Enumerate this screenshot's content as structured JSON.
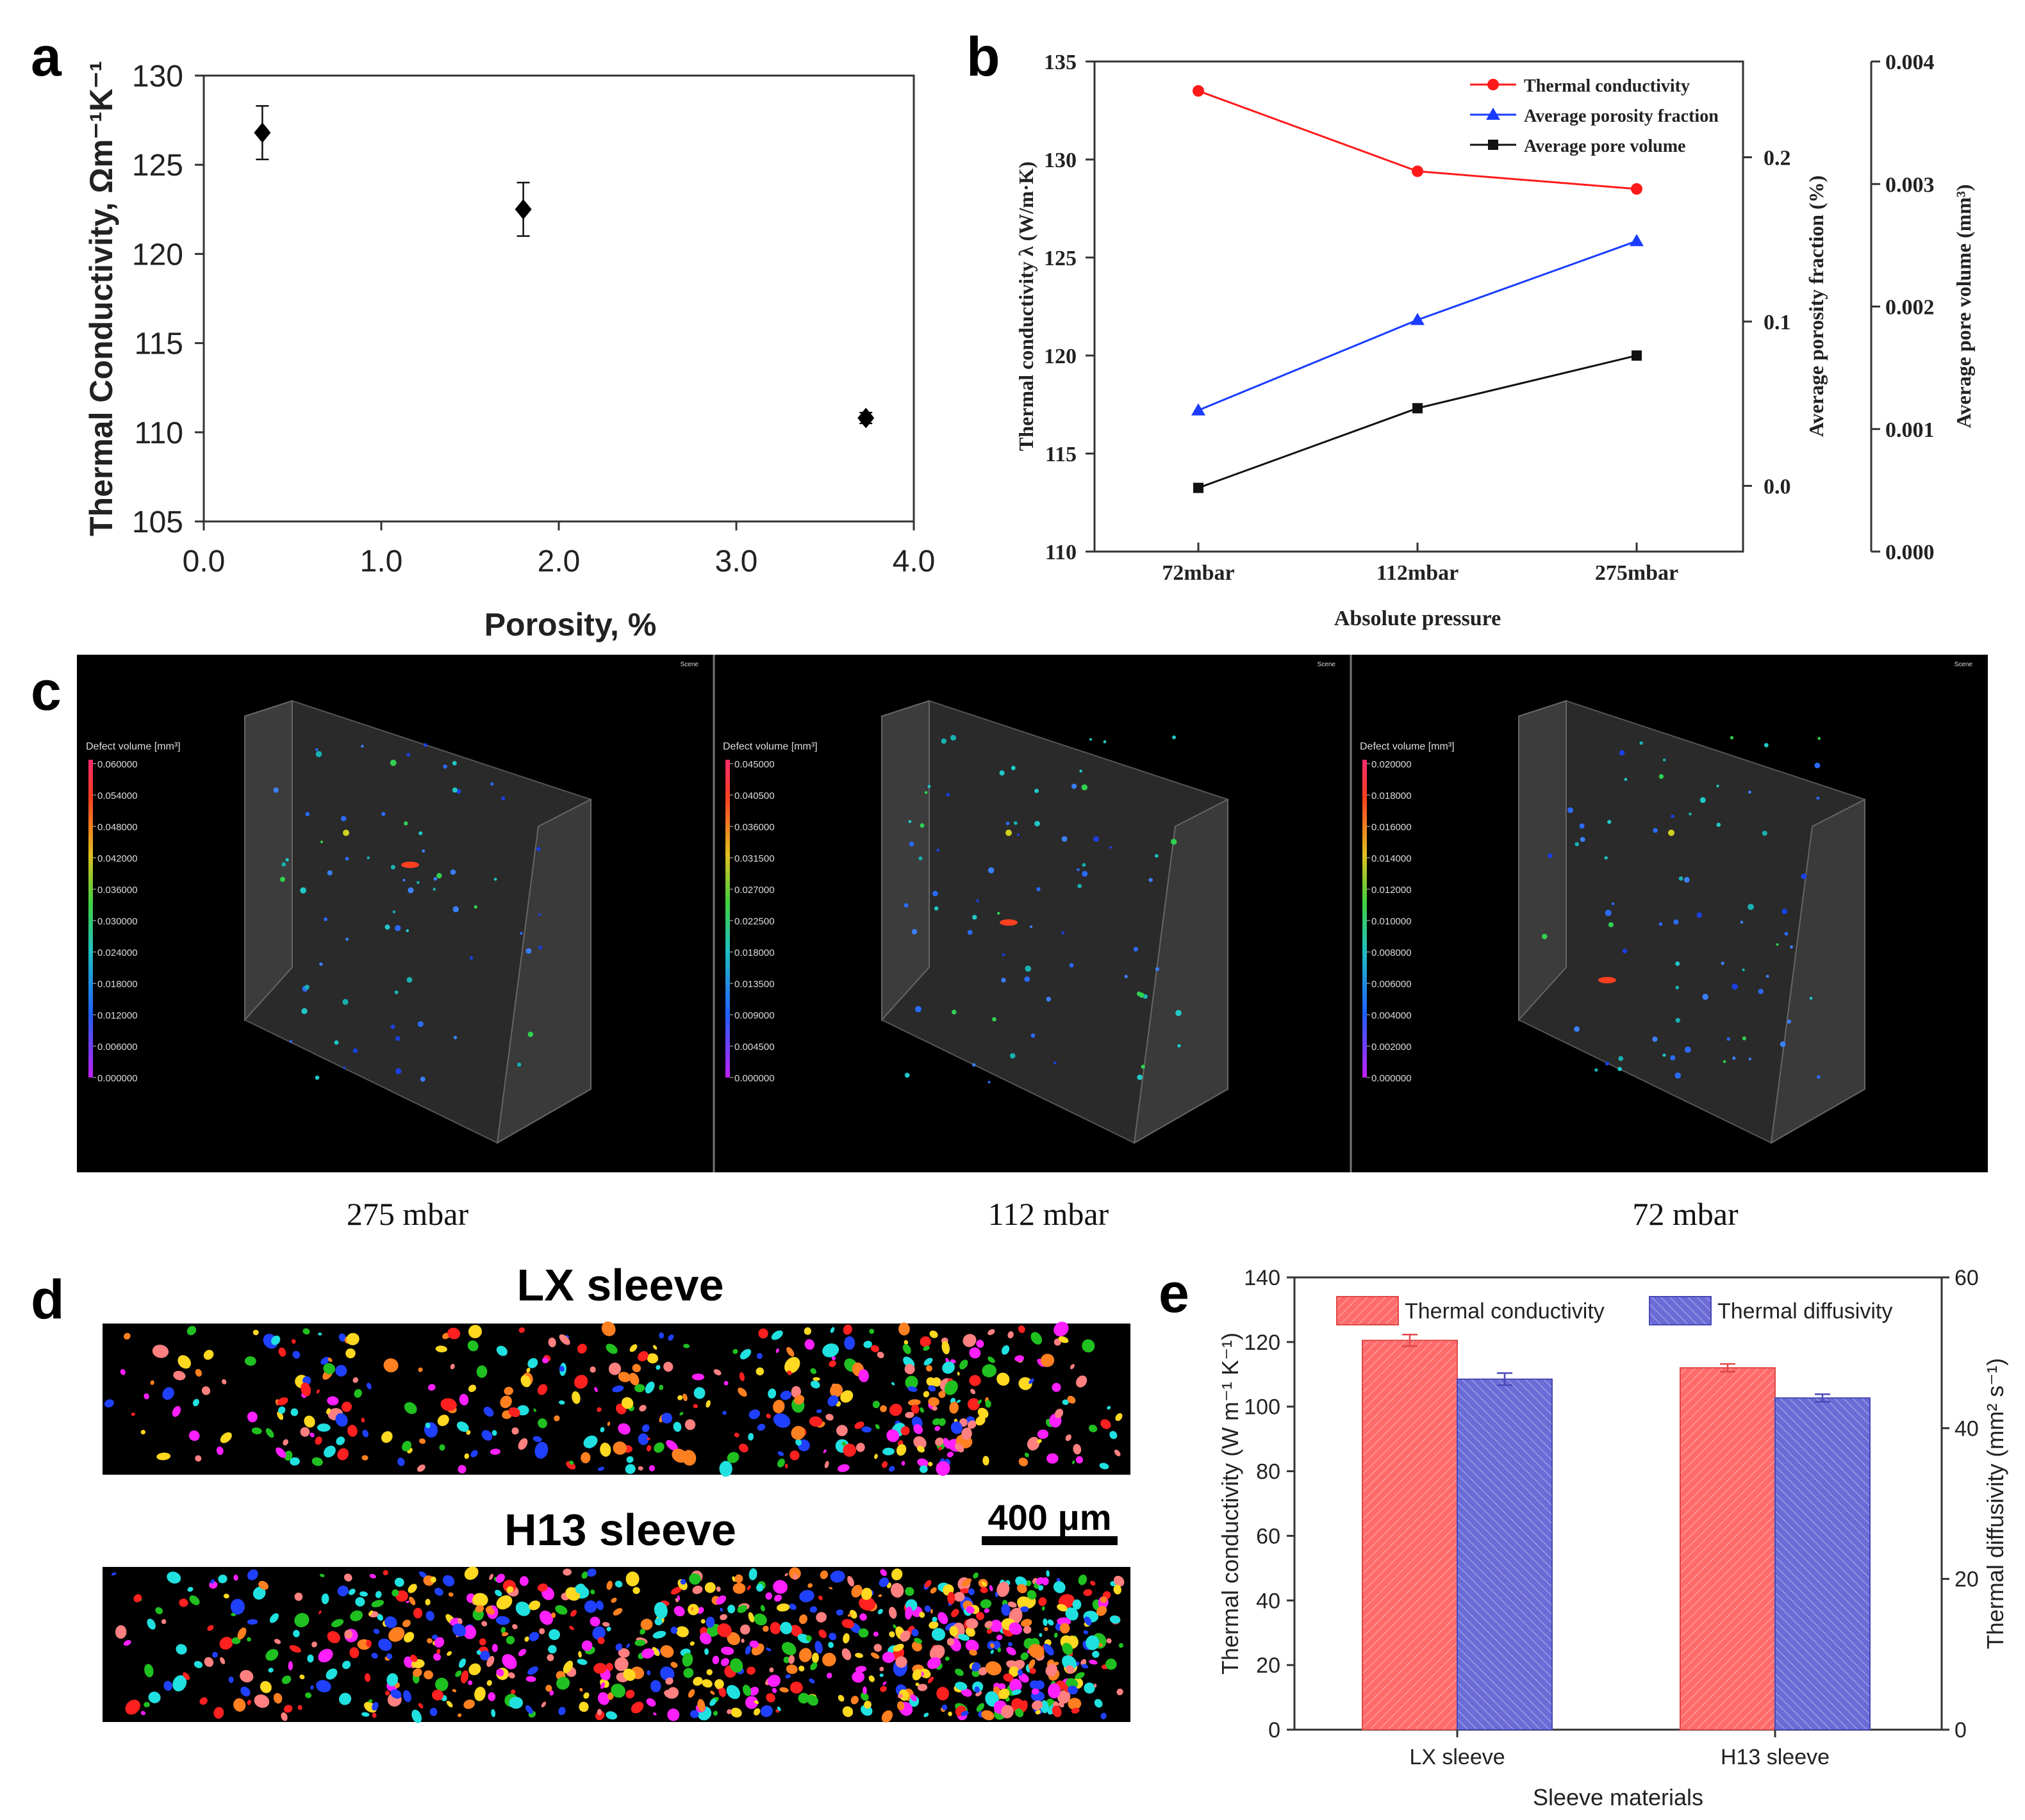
{
  "panel_labels": {
    "a": "a",
    "b": "b",
    "c": "c",
    "d": "d",
    "e": "e"
  },
  "chart_data": [
    {
      "id": "a",
      "type": "scatter",
      "xlabel": "Porosity, %",
      "ylabel": "Thermal Conductivity, Ωm⁻¹K⁻¹",
      "xlim": [
        0.0,
        4.0
      ],
      "ylim": [
        105,
        130
      ],
      "xticks": [
        "0.0",
        "1.0",
        "2.0",
        "3.0",
        "4.0"
      ],
      "yticks": [
        "105",
        "110",
        "115",
        "120",
        "125",
        "130"
      ],
      "points": [
        {
          "x": 0.33,
          "y": 126.8,
          "err": 1.5
        },
        {
          "x": 1.8,
          "y": 122.5,
          "err": 1.5
        },
        {
          "x": 3.73,
          "y": 110.8,
          "err": 0.3
        }
      ],
      "marker_color": "#000000"
    },
    {
      "id": "b",
      "type": "line",
      "xlabel": "Absolute pressure",
      "ylabel": "Thermal conductivity λ (W/m·K)",
      "ylabel2": "Average porosity fraction (%)",
      "ylabel3": "Average pore volume (mm³)",
      "categories": [
        "72mbar",
        "112mbar",
        "275mbar"
      ],
      "ylim": [
        110,
        135
      ],
      "yticks": [
        "110",
        "115",
        "120",
        "125",
        "130",
        "135"
      ],
      "y2lim": [
        -0.04,
        0.2583
      ],
      "y2ticks": [
        "0.0",
        "0.1",
        "0.2"
      ],
      "y3lim": [
        0,
        0.004
      ],
      "y3ticks": [
        "0.000",
        "0.001",
        "0.002",
        "0.003",
        "0.004"
      ],
      "legend_position": "top-right",
      "series": [
        {
          "name": "Thermal conductivity",
          "axis": "y",
          "values": [
            133.5,
            129.4,
            128.5
          ],
          "color": "#ff1a1a",
          "marker": "circle"
        },
        {
          "name": "Average porosity fraction",
          "axis": "y2",
          "values": [
            0.046,
            0.101,
            0.149
          ],
          "color": "#1a3cff",
          "marker": "triangle"
        },
        {
          "name": "Average pore volume",
          "axis": "y3",
          "values": [
            0.00052,
            0.00117,
            0.0016
          ],
          "color": "#111111",
          "marker": "square"
        }
      ]
    },
    {
      "id": "e",
      "type": "bar",
      "xlabel": "Sleeve materials",
      "ylabel": "Thermal conductivity (W m⁻¹ K⁻¹)",
      "ylabel2": "Thermal diffusivity (mm² s⁻¹)",
      "categories": [
        "LX sleeve",
        "H13 sleeve"
      ],
      "ylim": [
        0,
        140
      ],
      "yticks": [
        "0",
        "20",
        "40",
        "60",
        "80",
        "100",
        "120",
        "140"
      ],
      "y2lim": [
        0,
        60
      ],
      "y2ticks": [
        "0",
        "20",
        "40",
        "60"
      ],
      "legend_position": "top",
      "series": [
        {
          "name": "Thermal conductivity",
          "axis": "y",
          "values": [
            120.5,
            112.0
          ],
          "err": [
            1.8,
            1.2
          ],
          "color": "#ff6b6b"
        },
        {
          "name": "Thermal diffusivity",
          "axis": "y2",
          "values": [
            46.5,
            44.0
          ],
          "err": [
            0.8,
            0.5
          ],
          "color": "#6b6bd6"
        }
      ]
    }
  ],
  "panel_c": {
    "captions": [
      "275 mbar",
      "112 mbar",
      "72 mbar"
    ],
    "colorbar_title": "Defect volume [mm³]",
    "corner_label": "Scene",
    "colorbars": [
      [
        "0.060000",
        "0.054000",
        "0.048000",
        "0.042000",
        "0.036000",
        "0.030000",
        "0.024000",
        "0.018000",
        "0.012000",
        "0.006000",
        "0.000000"
      ],
      [
        "0.045000",
        "0.040500",
        "0.036000",
        "0.031500",
        "0.027000",
        "0.022500",
        "0.018000",
        "0.013500",
        "0.009000",
        "0.004500",
        "0.000000"
      ],
      [
        "0.020000",
        "0.018000",
        "0.016000",
        "0.014000",
        "0.012000",
        "0.010000",
        "0.008000",
        "0.006000",
        "0.004000",
        "0.002000",
        "0.000000"
      ]
    ]
  },
  "panel_d": {
    "title_top": "LX sleeve",
    "title_bottom": "H13 sleeve",
    "scale_bar": "400 μm"
  }
}
